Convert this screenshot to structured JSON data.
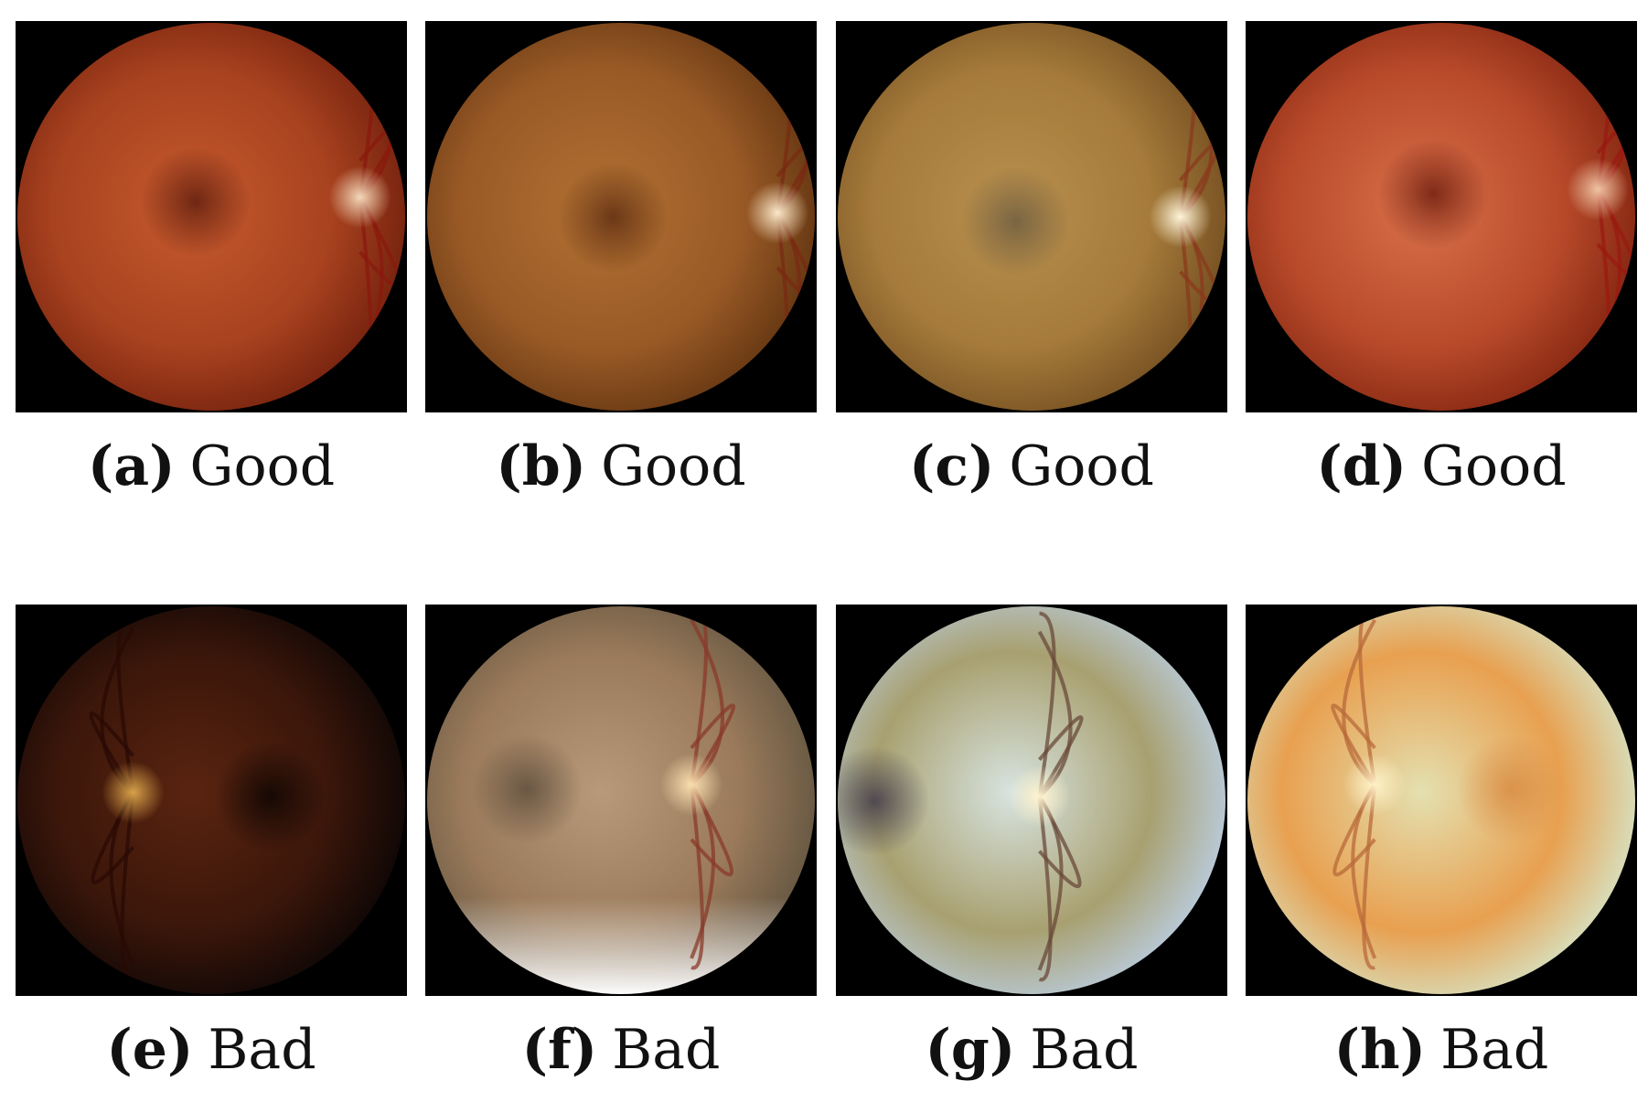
{
  "panels": [
    {
      "tag": "(a)",
      "label": "Good"
    },
    {
      "tag": "(b)",
      "label": "Good"
    },
    {
      "tag": "(c)",
      "label": "Good"
    },
    {
      "tag": "(d)",
      "label": "Good"
    },
    {
      "tag": "(e)",
      "label": "Bad"
    },
    {
      "tag": "(f)",
      "label": "Bad"
    },
    {
      "tag": "(g)",
      "label": "Bad"
    },
    {
      "tag": "(h)",
      "label": "Bad"
    }
  ]
}
